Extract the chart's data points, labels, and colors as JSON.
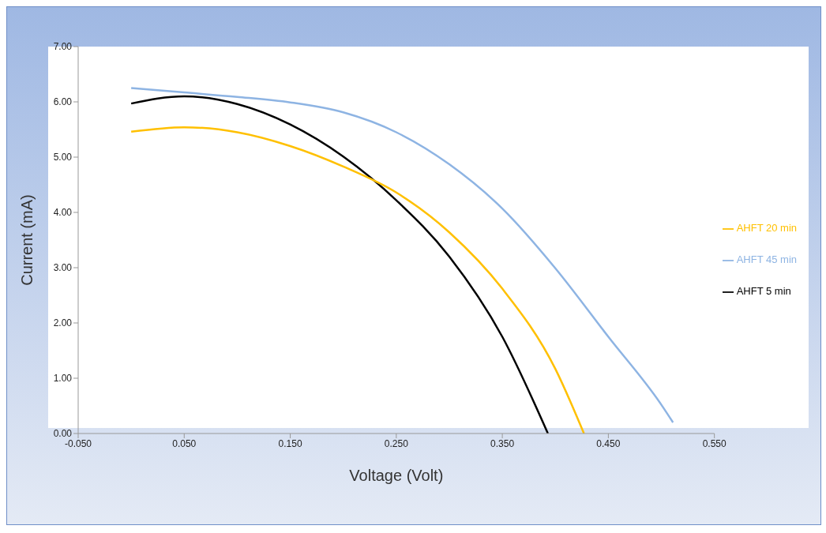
{
  "chart_data": {
    "type": "line",
    "xlabel": "Voltage (Volt)",
    "ylabel": "Current  (mA)",
    "xlim": [
      -0.05,
      0.55
    ],
    "xticks": [
      {
        "value": -0.05,
        "label": "-0.050"
      },
      {
        "value": 0.05,
        "label": "0.050"
      },
      {
        "value": 0.15,
        "label": "0.150"
      },
      {
        "value": 0.25,
        "label": "0.250"
      },
      {
        "value": 0.35,
        "label": "0.350"
      },
      {
        "value": 0.45,
        "label": "0.450"
      },
      {
        "value": 0.55,
        "label": "0.550"
      }
    ],
    "ylim": [
      0,
      7
    ],
    "yticks": [
      {
        "value": 0,
        "label": "0.00"
      },
      {
        "value": 1,
        "label": "1.00"
      },
      {
        "value": 2,
        "label": "2.00"
      },
      {
        "value": 3,
        "label": "3.00"
      },
      {
        "value": 4,
        "label": "4.00"
      },
      {
        "value": 5,
        "label": "5.00"
      },
      {
        "value": 6,
        "label": "6.00"
      },
      {
        "value": 7,
        "label": "7.00"
      }
    ],
    "grid": false,
    "legend": "right",
    "marker": "none",
    "line_style": "solid",
    "series": [
      {
        "name": "AHFT 5 min",
        "color": "#000000",
        "x": [
          0,
          0.05,
          0.1,
          0.15,
          0.2,
          0.25,
          0.3,
          0.35,
          0.393
        ],
        "values": [
          5.97,
          6.1,
          5.96,
          5.59,
          5.01,
          4.22,
          3.2,
          1.75,
          0
        ]
      },
      {
        "name": "AHFT 20 min",
        "color": "#ffc000",
        "x": [
          0,
          0.05,
          0.1,
          0.15,
          0.2,
          0.25,
          0.3,
          0.35,
          0.4,
          0.427
        ],
        "values": [
          5.46,
          5.54,
          5.45,
          5.2,
          4.83,
          4.36,
          3.64,
          2.62,
          1.17,
          0
        ]
      },
      {
        "name": "AHFT 45 min",
        "color": "#8eb4e3",
        "x": [
          0,
          0.05,
          0.1,
          0.15,
          0.2,
          0.25,
          0.3,
          0.35,
          0.4,
          0.45,
          0.5,
          0.511
        ],
        "values": [
          6.25,
          6.17,
          6.09,
          5.99,
          5.81,
          5.45,
          4.87,
          4.07,
          2.99,
          1.75,
          0.52,
          0.2
        ]
      }
    ]
  }
}
